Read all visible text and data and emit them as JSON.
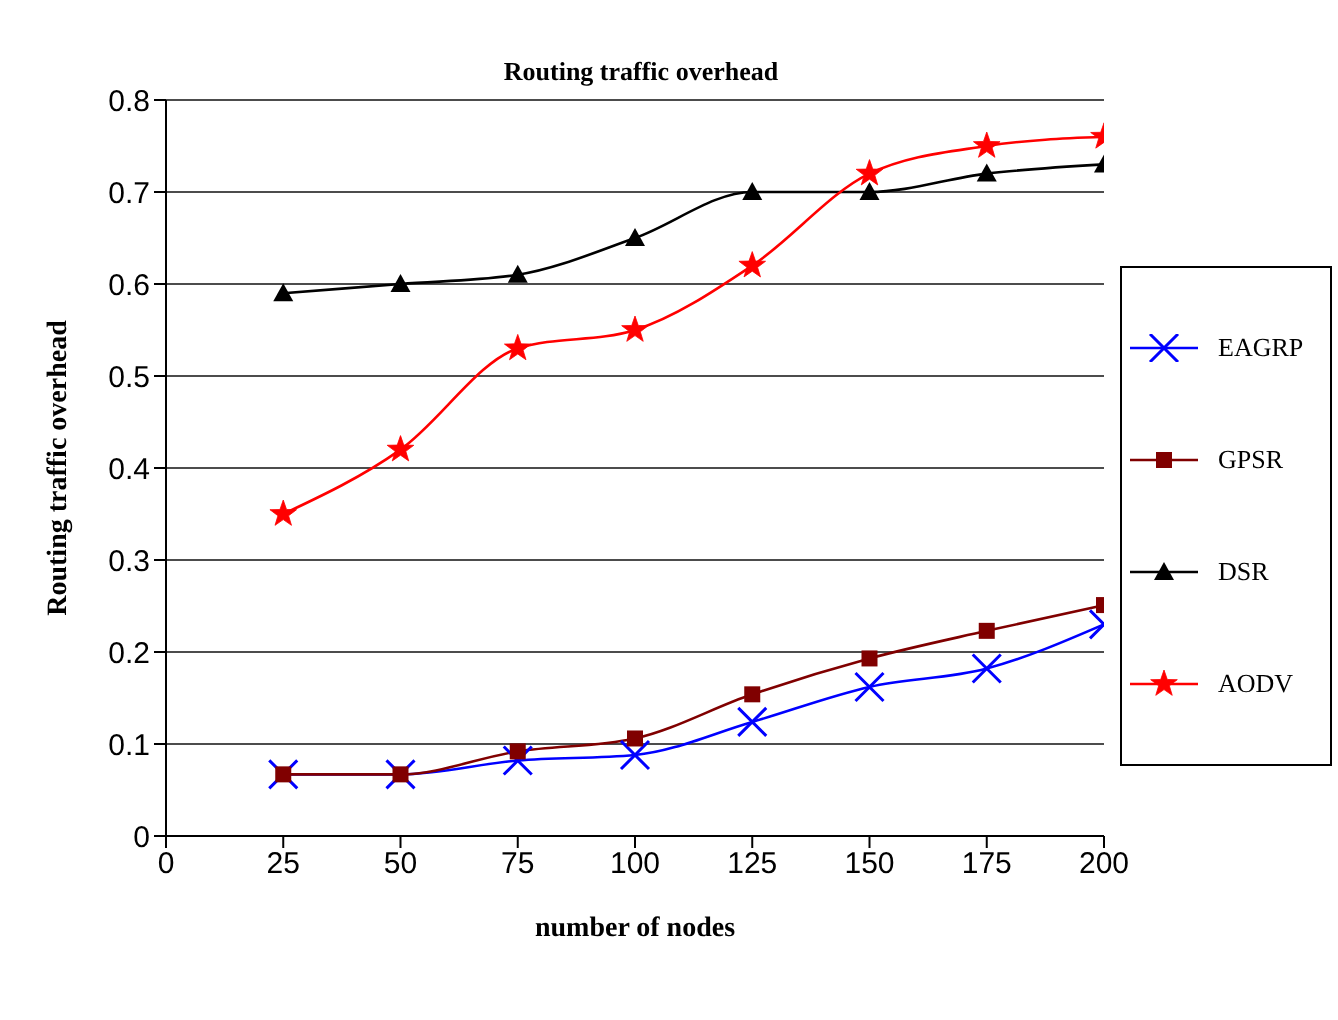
{
  "chart_data": {
    "type": "line",
    "title": "Routing traffic overhead",
    "xlabel": "number of nodes",
    "ylabel": "Routing traffic overhead",
    "x": [
      25,
      50,
      75,
      100,
      125,
      150,
      175,
      200
    ],
    "xlim": [
      0,
      200
    ],
    "xticks": [
      0,
      25,
      50,
      75,
      100,
      125,
      150,
      175,
      200
    ],
    "ylim": [
      0,
      0.8
    ],
    "yticks": [
      0,
      0.1,
      0.2,
      0.3,
      0.4,
      0.5,
      0.6,
      0.7,
      0.8
    ],
    "grid": "y",
    "legend": "right",
    "series": [
      {
        "name": "EAGRP",
        "color": "#0000ff",
        "marker": "cross",
        "values": [
          0.067,
          0.067,
          0.082,
          0.088,
          0.124,
          0.162,
          0.182,
          0.23
        ]
      },
      {
        "name": "GPSR",
        "color": "#800000",
        "marker": "square",
        "values": [
          0.067,
          0.067,
          0.092,
          0.106,
          0.154,
          0.193,
          0.223,
          0.251
        ]
      },
      {
        "name": "DSR",
        "color": "#000000",
        "marker": "triangle",
        "values": [
          0.59,
          0.6,
          0.61,
          0.65,
          0.7,
          0.7,
          0.72,
          0.73
        ]
      },
      {
        "name": "AODV",
        "color": "#ff0000",
        "marker": "star",
        "values": [
          0.35,
          0.42,
          0.53,
          0.55,
          0.62,
          0.72,
          0.75,
          0.76
        ]
      }
    ]
  }
}
